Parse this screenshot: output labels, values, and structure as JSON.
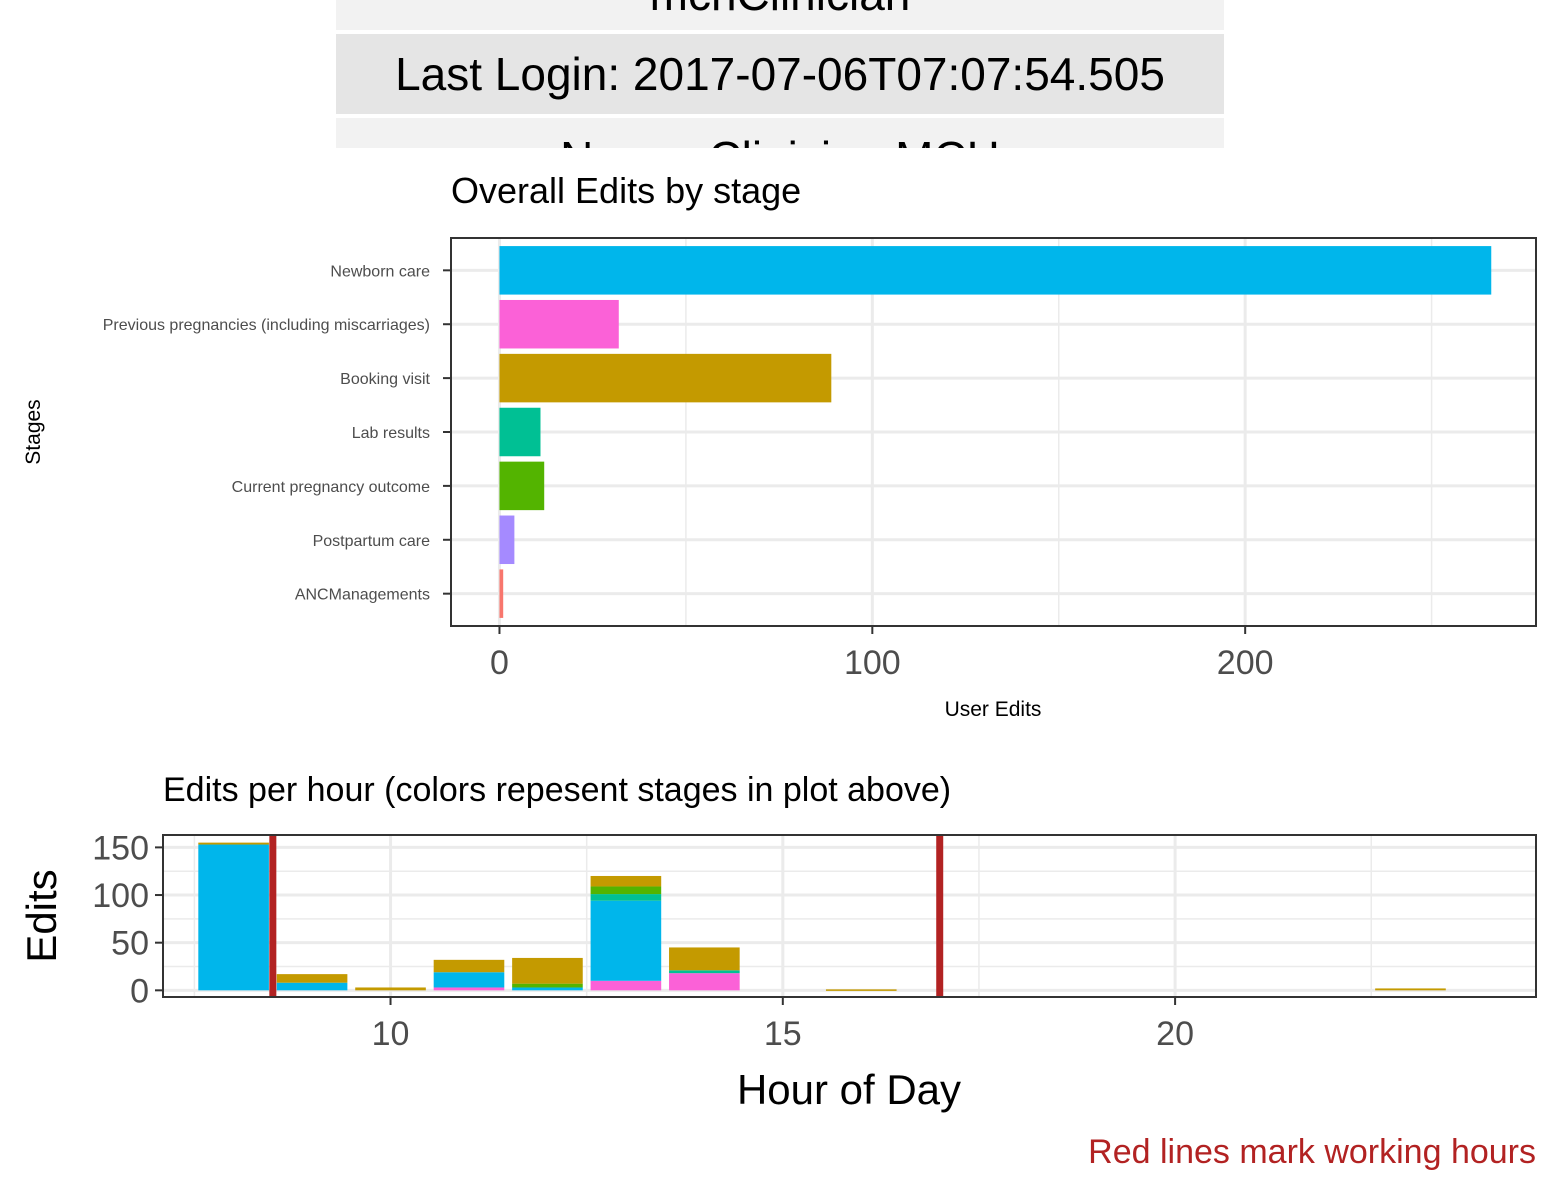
{
  "user_info": {
    "rows": [
      "mchClinician",
      "Last Login: 2017-07-06T07:07:54.505",
      "Name: Clinician MCH"
    ]
  },
  "colors": {
    "panel_border": "#333333",
    "grid": "#ebebeb",
    "working_hours_line": "#b22222"
  },
  "chart_data": [
    {
      "type": "bar",
      "orientation": "horizontal",
      "title": "Overall Edits by stage",
      "xlabel": "User Edits",
      "ylabel": "Stages",
      "xlim": [
        -13,
        278
      ],
      "xticks": [
        0,
        100,
        200
      ],
      "grid": true,
      "categories": [
        "Newborn care",
        "Previous pregnancies (including miscarriages)",
        "Booking visit",
        "Lab results",
        "Current pregnancy outcome",
        "Postpartum care",
        "ANCManagements"
      ],
      "values": [
        266,
        32,
        89,
        11,
        12,
        4,
        1
      ],
      "colors": [
        "#00b6eb",
        "#fb61d7",
        "#c49a00",
        "#00c094",
        "#53b400",
        "#a58aff",
        "#f8766d"
      ]
    },
    {
      "type": "bar",
      "stacked": true,
      "title": "Edits per hour (colors repesent stages in plot above)",
      "xlabel": "Hour of Day",
      "ylabel": "Edits",
      "xlim": [
        7.1,
        24.6
      ],
      "ylim": [
        -7,
        163
      ],
      "xticks": [
        10,
        15,
        20
      ],
      "yticks": [
        0,
        50,
        100,
        150
      ],
      "grid": true,
      "working_hours": [
        8.5,
        17
      ],
      "footnote": "Red lines mark working hours",
      "series_colors": {
        "ANCManagements": "#f8766d",
        "Previous pregnancies (including miscarriages)": "#fb61d7",
        "Newborn care": "#00b6eb",
        "Lab results": "#00c094",
        "Current pregnancy outcome": "#53b400",
        "Booking visit": "#c49a00"
      },
      "hours": [
        {
          "hour": 8,
          "stacks": [
            {
              "stage": "Newborn care",
              "value": 153
            },
            {
              "stage": "Booking visit",
              "value": 2
            }
          ]
        },
        {
          "hour": 9,
          "stacks": [
            {
              "stage": "Newborn care",
              "value": 8
            },
            {
              "stage": "Booking visit",
              "value": 9
            }
          ]
        },
        {
          "hour": 10,
          "stacks": [
            {
              "stage": "Booking visit",
              "value": 3
            }
          ]
        },
        {
          "hour": 11,
          "stacks": [
            {
              "stage": "Previous pregnancies (including miscarriages)",
              "value": 3
            },
            {
              "stage": "Newborn care",
              "value": 16
            },
            {
              "stage": "Booking visit",
              "value": 13
            }
          ]
        },
        {
          "hour": 12,
          "stacks": [
            {
              "stage": "Newborn care",
              "value": 3
            },
            {
              "stage": "Current pregnancy outcome",
              "value": 4
            },
            {
              "stage": "Booking visit",
              "value": 27
            }
          ]
        },
        {
          "hour": 13,
          "stacks": [
            {
              "stage": "Previous pregnancies (including miscarriages)",
              "value": 10
            },
            {
              "stage": "Newborn care",
              "value": 84
            },
            {
              "stage": "Lab results",
              "value": 7
            },
            {
              "stage": "Current pregnancy outcome",
              "value": 8
            },
            {
              "stage": "Booking visit",
              "value": 11
            }
          ]
        },
        {
          "hour": 14,
          "stacks": [
            {
              "stage": "Previous pregnancies (including miscarriages)",
              "value": 18
            },
            {
              "stage": "Lab results",
              "value": 3
            },
            {
              "stage": "Booking visit",
              "value": 24
            }
          ]
        },
        {
          "hour": 16,
          "stacks": [
            {
              "stage": "Booking visit",
              "value": 1
            }
          ]
        },
        {
          "hour": 23,
          "stacks": [
            {
              "stage": "Booking visit",
              "value": 2
            }
          ]
        }
      ]
    }
  ]
}
